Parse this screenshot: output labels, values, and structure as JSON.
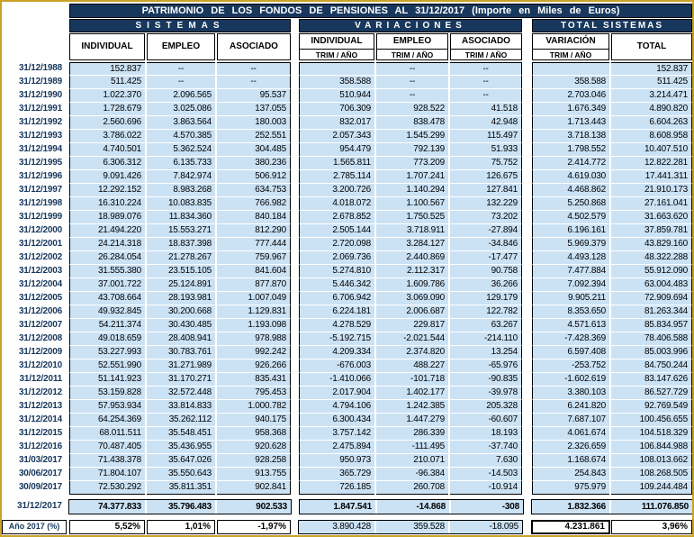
{
  "title": "PATRIMONIO DE LOS FONDOS DE PENSIONES AL 31/12/2017 (Importe en Miles de Euros)",
  "groups": [
    {
      "label": "SISTEMAS"
    },
    {
      "label": "VARIACIONES"
    },
    {
      "label": "TOTAL SISTEMAS"
    }
  ],
  "columns": [
    {
      "label": "INDIVIDUAL",
      "sub": ""
    },
    {
      "label": "EMPLEO",
      "sub": ""
    },
    {
      "label": "ASOCIADO",
      "sub": ""
    },
    {
      "label": "INDIVIDUAL",
      "sub": "TRIM / AÑO"
    },
    {
      "label": "EMPLEO",
      "sub": "TRIM / AÑO"
    },
    {
      "label": "ASOCIADO",
      "sub": "TRIM / AÑO"
    },
    {
      "label": "VARIACIÓN",
      "sub": "TRIM / AÑO"
    },
    {
      "label": "TOTAL",
      "sub": ""
    }
  ],
  "colors": {
    "navy": "#17375d",
    "cell_blue": "#cbe2f5",
    "gold_border": "#c9a227"
  },
  "rows": [
    {
      "date": "31/12/1988",
      "cells": [
        "152.837",
        "--",
        "--",
        "",
        "--",
        "--",
        "",
        "152.837"
      ]
    },
    {
      "date": "31/12/1989",
      "cells": [
        "511.425",
        "--",
        "--",
        "358.588",
        "--",
        "--",
        "358.588",
        "511.425"
      ]
    },
    {
      "date": "31/12/1990",
      "cells": [
        "1.022.370",
        "2.096.565",
        "95.537",
        "510.944",
        "--",
        "--",
        "2.703.046",
        "3.214.471"
      ]
    },
    {
      "date": "31/12/1991",
      "cells": [
        "1.728.679",
        "3.025.086",
        "137.055",
        "706.309",
        "928.522",
        "41.518",
        "1.676.349",
        "4.890.820"
      ]
    },
    {
      "date": "31/12/1992",
      "cells": [
        "2.560.696",
        "3.863.564",
        "180.003",
        "832.017",
        "838.478",
        "42.948",
        "1.713.443",
        "6.604.263"
      ]
    },
    {
      "date": "31/12/1993",
      "cells": [
        "3.786.022",
        "4.570.385",
        "252.551",
        "2.057.343",
        "1.545.299",
        "115.497",
        "3.718.138",
        "8.608.958"
      ]
    },
    {
      "date": "31/12/1994",
      "cells": [
        "4.740.501",
        "5.362.524",
        "304.485",
        "954.479",
        "792.139",
        "51.933",
        "1.798.552",
        "10.407.510"
      ]
    },
    {
      "date": "31/12/1995",
      "cells": [
        "6.306.312",
        "6.135.733",
        "380.236",
        "1.565.811",
        "773.209",
        "75.752",
        "2.414.772",
        "12.822.281"
      ]
    },
    {
      "date": "31/12/1996",
      "cells": [
        "9.091.426",
        "7.842.974",
        "506.912",
        "2.785.114",
        "1.707.241",
        "126.675",
        "4.619.030",
        "17.441.311"
      ]
    },
    {
      "date": "31/12/1997",
      "cells": [
        "12.292.152",
        "8.983.268",
        "634.753",
        "3.200.726",
        "1.140.294",
        "127.841",
        "4.468.862",
        "21.910.173"
      ]
    },
    {
      "date": "31/12/1998",
      "cells": [
        "16.310.224",
        "10.083.835",
        "766.982",
        "4.018.072",
        "1.100.567",
        "132.229",
        "5.250.868",
        "27.161.041"
      ]
    },
    {
      "date": "31/12/1999",
      "cells": [
        "18.989.076",
        "11.834.360",
        "840.184",
        "2.678.852",
        "1.750.525",
        "73.202",
        "4.502.579",
        "31.663.620"
      ]
    },
    {
      "date": "31/12/2000",
      "cells": [
        "21.494.220",
        "15.553.271",
        "812.290",
        "2.505.144",
        "3.718.911",
        "-27.894",
        "6.196.161",
        "37.859.781"
      ]
    },
    {
      "date": "31/12/2001",
      "cells": [
        "24.214.318",
        "18.837.398",
        "777.444",
        "2.720.098",
        "3.284.127",
        "-34.846",
        "5.969.379",
        "43.829.160"
      ]
    },
    {
      "date": "31/12/2002",
      "cells": [
        "26.284.054",
        "21.278.267",
        "759.967",
        "2.069.736",
        "2.440.869",
        "-17.477",
        "4.493.128",
        "48.322.288"
      ]
    },
    {
      "date": "31/12/2003",
      "cells": [
        "31.555.380",
        "23.515.105",
        "841.604",
        "5.274.810",
        "2.112.317",
        "90.758",
        "7.477.884",
        "55.912.090"
      ]
    },
    {
      "date": "31/12/2004",
      "cells": [
        "37.001.722",
        "25.124.891",
        "877.870",
        "5.446.342",
        "1.609.786",
        "36.266",
        "7.092.394",
        "63.004.483"
      ]
    },
    {
      "date": "31/12/2005",
      "cells": [
        "43.708.664",
        "28.193.981",
        "1.007.049",
        "6.706.942",
        "3.069.090",
        "129.179",
        "9.905.211",
        "72.909.694"
      ]
    },
    {
      "date": "31/12/2006",
      "cells": [
        "49.932.845",
        "30.200.668",
        "1.129.831",
        "6.224.181",
        "2.006.687",
        "122.782",
        "8.353.650",
        "81.263.344"
      ]
    },
    {
      "date": "31/12/2007",
      "cells": [
        "54.211.374",
        "30.430.485",
        "1.193.098",
        "4.278.529",
        "229.817",
        "63.267",
        "4.571.613",
        "85.834.957"
      ]
    },
    {
      "date": "31/12/2008",
      "cells": [
        "49.018.659",
        "28.408.941",
        "978.988",
        "-5.192.715",
        "-2.021.544",
        "-214.110",
        "-7.428.369",
        "78.406.588"
      ]
    },
    {
      "date": "31/12/2009",
      "cells": [
        "53.227.993",
        "30.783.761",
        "992.242",
        "4.209.334",
        "2.374.820",
        "13.254",
        "6.597.408",
        "85.003.996"
      ]
    },
    {
      "date": "31/12/2010",
      "cells": [
        "52.551.990",
        "31.271.989",
        "926.266",
        "-676.003",
        "488.227",
        "-65.976",
        "-253.752",
        "84.750.244"
      ]
    },
    {
      "date": "31/12/2011",
      "cells": [
        "51.141.923",
        "31.170.271",
        "835.431",
        "-1.410.066",
        "-101.718",
        "-90.835",
        "-1.602.619",
        "83.147.626"
      ]
    },
    {
      "date": "31/12/2012",
      "cells": [
        "53.159.828",
        "32.572.448",
        "795.453",
        "2.017.904",
        "1.402.177",
        "-39.978",
        "3.380.103",
        "86.527.729"
      ]
    },
    {
      "date": "31/12/2013",
      "cells": [
        "57.953.934",
        "33.814.833",
        "1.000.782",
        "4.794.106",
        "1.242.385",
        "205.328",
        "6.241.820",
        "92.769.549"
      ]
    },
    {
      "date": "31/12/2014",
      "cells": [
        "64.254.369",
        "35.262.112",
        "940.175",
        "6.300.434",
        "1.447.279",
        "-60.607",
        "7.687.107",
        "100.456.655"
      ]
    },
    {
      "date": "31/12/2015",
      "cells": [
        "68.011.511",
        "35.548.451",
        "958.368",
        "3.757.142",
        "286.339",
        "18.193",
        "4.061.674",
        "104.518.329"
      ]
    },
    {
      "date": "31/12/2016",
      "cells": [
        "70.487.405",
        "35.436.955",
        "920.628",
        "2.475.894",
        "-111.495",
        "-37.740",
        "2.326.659",
        "106.844.988"
      ]
    },
    {
      "date": "31/03/2017",
      "cells": [
        "71.438.378",
        "35.647.026",
        "928.258",
        "950.973",
        "210.071",
        "7.630",
        "1.168.674",
        "108.013.662"
      ]
    },
    {
      "date": "30/06/2017",
      "cells": [
        "71.804.107",
        "35.550.643",
        "913.755",
        "365.729",
        "-96.384",
        "-14.503",
        "254.843",
        "108.268.505"
      ]
    },
    {
      "date": "30/09/2017",
      "cells": [
        "72.530.292",
        "35.811.351",
        "902.841",
        "726.185",
        "260.708",
        "-10.914",
        "975.979",
        "109.244.484"
      ]
    }
  ],
  "summary_row": {
    "date": "31/12/2017",
    "cells": [
      "74.377.833",
      "35.796.483",
      "902.533",
      "1.847.541",
      "-14.868",
      "-308",
      "1.832.366",
      "111.076.850"
    ]
  },
  "final_row": {
    "label": "Año 2017 (%)",
    "cells": [
      "5,52%",
      "1,01%",
      "-1,97%",
      "3.890.428",
      "359.528",
      "-18.095",
      "4.231.861",
      "3,96%"
    ]
  }
}
